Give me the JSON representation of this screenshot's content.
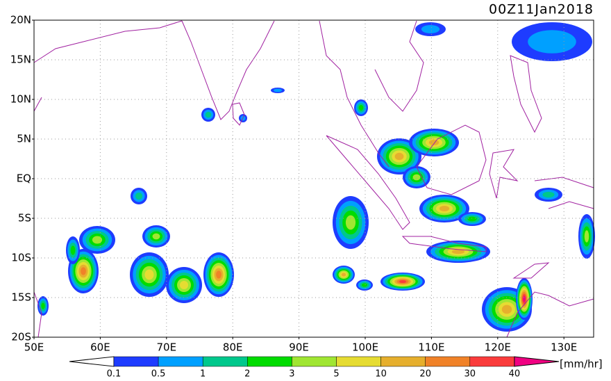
{
  "title": "00Z11Jan2018",
  "lat_labels": [
    "20N",
    "15N",
    "10N",
    "5N",
    "EQ",
    "5S",
    "10S",
    "15S",
    "20S"
  ],
  "lon_labels": [
    "50E",
    "60E",
    "70E",
    "80E",
    "90E",
    "100E",
    "110E",
    "120E",
    "130E"
  ],
  "colorbar": {
    "labels": [
      "0.1",
      "0.5",
      "1",
      "2",
      "3",
      "5",
      "10",
      "20",
      "30",
      "40"
    ],
    "colors": [
      "#ffffff",
      "#1e3cff",
      "#00a0ff",
      "#00c88c",
      "#00dc00",
      "#a0e632",
      "#e6dc32",
      "#e6af2d",
      "#f08228",
      "#fa3c3c",
      "#f00082"
    ],
    "unit": "[mm/hr]"
  }
}
